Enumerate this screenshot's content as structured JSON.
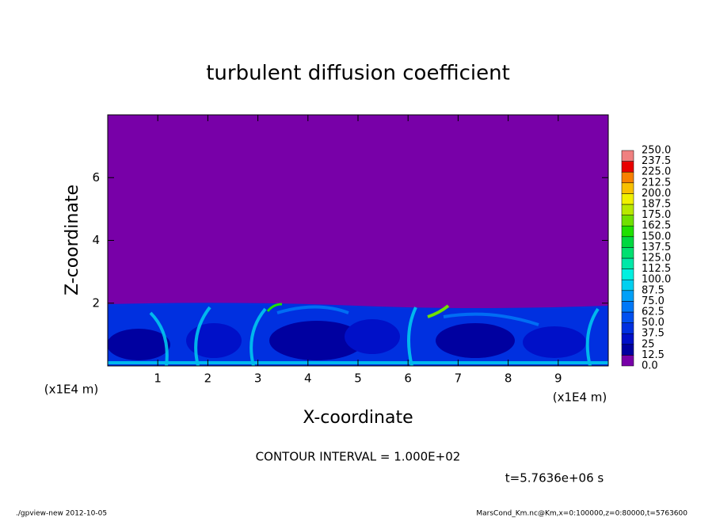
{
  "chart_data": {
    "type": "contour",
    "title": "turbulent diffusion coefficient",
    "x_label": "X-coordinate",
    "y_label": "Z-coordinate",
    "x_unit_label": "(x1E4 m)",
    "xlim": [
      0,
      10
    ],
    "ylim": [
      0,
      8
    ],
    "xticks": [
      1,
      2,
      3,
      4,
      5,
      6,
      7,
      8,
      9
    ],
    "yticks": [
      2,
      4,
      6
    ],
    "levels": [
      {
        "value": 0,
        "label": "0.0"
      },
      12.5,
      25,
      37.5,
      {
        "value": 50,
        "label": "50.0"
      },
      62.5,
      {
        "value": 75,
        "label": "75.0"
      },
      87.5,
      {
        "value": 100,
        "label": "100.0"
      },
      112.5,
      {
        "value": 125,
        "label": "125.0"
      },
      137.5,
      {
        "value": 150,
        "label": "150.0"
      },
      162.5,
      {
        "value": 175,
        "label": "175.0"
      },
      187.5,
      {
        "value": 200,
        "label": "200.0"
      },
      212.5,
      {
        "value": 225,
        "label": "225.0"
      },
      237.5,
      {
        "value": 250,
        "label": "250.0"
      }
    ],
    "level_colors": [
      "#7800a8",
      "#0000a0",
      "#0010c8",
      "#0030e0",
      "#0050f0",
      "#0078f8",
      "#00a0f8",
      "#00d0f0",
      "#00f0e0",
      "#00e8a8",
      "#00e070",
      "#00d840",
      "#20e000",
      "#70e000",
      "#b8e800",
      "#f0f000",
      "#f8c000",
      "#f88000",
      "#e80000",
      "#f08080"
    ],
    "contour_interval": "CONTOUR INTERVAL = 1.000E+02",
    "time_label": "t=5.7636e+06 s",
    "footer_left": "./gpview-new   2012-10-05",
    "footer_right": "MarsCond_Km.nc@Km,x=0:100000,z=0:80000,t=5763600"
  }
}
